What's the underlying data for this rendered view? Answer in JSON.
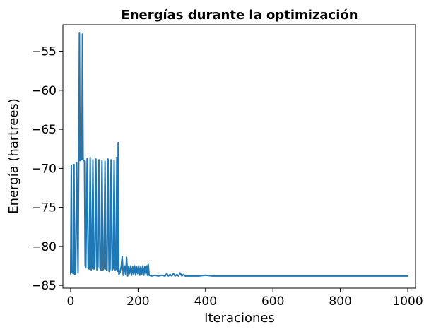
{
  "chart_data": {
    "type": "line",
    "title": "Energías durante la optimización",
    "xlabel": "Iteraciones",
    "ylabel": "Energía (hartrees)",
    "xlim": [
      -23,
      1023
    ],
    "ylim": [
      -85.35,
      -51.6
    ],
    "xticks": [
      0,
      200,
      400,
      600,
      800,
      1000
    ],
    "xtick_labels": [
      "0",
      "200",
      "400",
      "600",
      "800",
      "1000"
    ],
    "yticks": [
      -85,
      -80,
      -75,
      -70,
      -65,
      -60,
      -55
    ],
    "ytick_labels": [
      "−85",
      "−80",
      "−75",
      "−70",
      "−65",
      "−60",
      "−55"
    ],
    "grid": false,
    "legend": "none",
    "series": [
      {
        "color": "#1f77b4",
        "x": [
          0,
          2,
          4,
          8,
          10,
          12,
          15,
          18,
          22,
          24,
          26,
          28,
          30,
          33,
          35,
          37,
          39,
          41,
          43,
          45,
          49,
          52,
          55,
          58,
          61,
          63,
          66,
          69,
          72,
          75,
          78,
          81,
          84,
          87,
          90,
          93,
          96,
          99,
          102,
          105,
          108,
          111,
          114,
          117,
          120,
          123,
          126,
          129,
          132,
          135,
          137,
          139,
          141,
          143,
          146,
          150,
          153,
          156,
          160,
          163,
          166,
          169,
          172,
          175,
          178,
          181,
          184,
          187,
          190,
          193,
          196,
          199,
          202,
          205,
          208,
          211,
          214,
          217,
          220,
          223,
          226,
          228,
          230,
          233,
          240,
          250,
          260,
          270,
          280,
          285,
          290,
          295,
          300,
          305,
          310,
          315,
          320,
          325,
          330,
          335,
          340,
          360,
          380,
          400,
          420,
          440,
          460,
          480,
          500,
          600,
          700,
          800,
          900,
          1000
        ],
        "y": [
          -83.6,
          -69.6,
          -83.3,
          -83.5,
          -69.5,
          -83.6,
          -83.4,
          -69.3,
          -83.4,
          -69.0,
          -52.7,
          -69.0,
          -68.8,
          -68.9,
          -52.8,
          -68.9,
          -69.0,
          -69.1,
          -82.4,
          -82.8,
          -68.7,
          -82.7,
          -82.9,
          -68.6,
          -83.0,
          -82.8,
          -68.9,
          -82.9,
          -82.6,
          -68.8,
          -83.0,
          -82.6,
          -68.9,
          -82.8,
          -83.1,
          -69.0,
          -83.0,
          -82.8,
          -69.1,
          -82.9,
          -83.1,
          -68.8,
          -83.2,
          -82.9,
          -68.9,
          -83.1,
          -82.8,
          -69.0,
          -83.0,
          -82.9,
          -68.6,
          -83.2,
          -66.7,
          -83.6,
          -83.4,
          -82.6,
          -81.3,
          -83.7,
          -82.5,
          -83.6,
          -81.4,
          -83.8,
          -82.6,
          -83.5,
          -82.5,
          -83.7,
          -82.6,
          -83.6,
          -82.5,
          -83.7,
          -82.6,
          -83.5,
          -82.5,
          -83.7,
          -82.6,
          -83.6,
          -82.5,
          -83.7,
          -82.6,
          -83.5,
          -82.5,
          -83.7,
          -82.3,
          -83.7,
          -83.8,
          -83.7,
          -83.8,
          -83.7,
          -83.8,
          -83.5,
          -83.8,
          -83.6,
          -83.8,
          -83.5,
          -83.8,
          -83.6,
          -83.8,
          -83.4,
          -83.8,
          -83.6,
          -83.8,
          -83.8,
          -83.8,
          -83.7,
          -83.8,
          -83.8,
          -83.8,
          -83.8,
          -83.8,
          -83.8,
          -83.8,
          -83.8,
          -83.8,
          -83.8
        ]
      }
    ]
  }
}
